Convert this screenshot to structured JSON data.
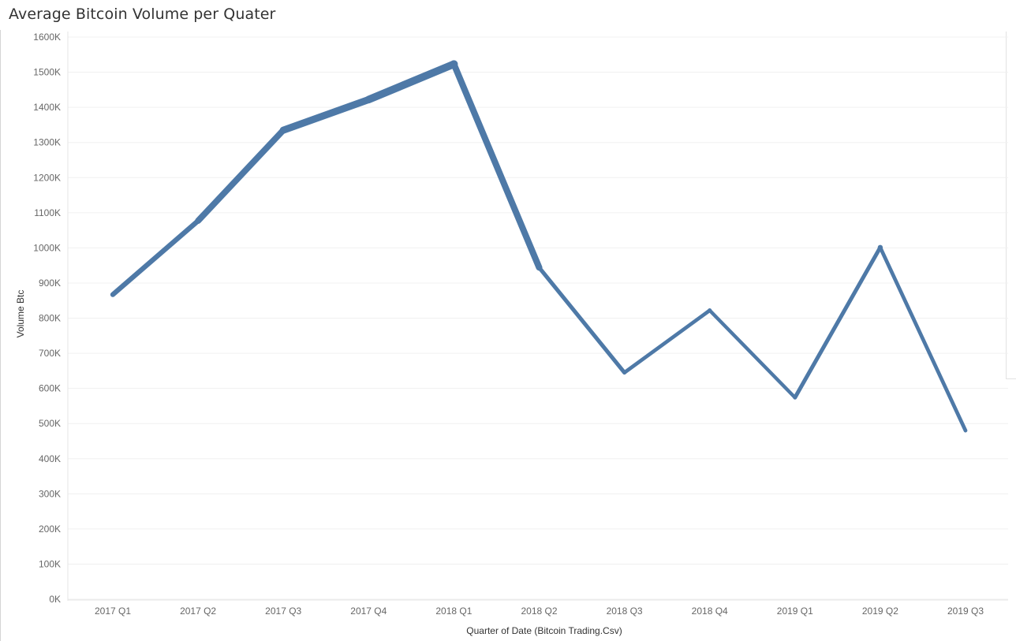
{
  "title": "Average Bitcoin Volume per Quater",
  "chart_data": {
    "type": "line",
    "title": "Average Bitcoin Volume per Quater",
    "xlabel": "Quarter of Date (Bitcoin Trading.Csv)",
    "ylabel": "Volume Btc",
    "categories": [
      "2017 Q1",
      "2017 Q2",
      "2017 Q3",
      "2017 Q4",
      "2018 Q1",
      "2018 Q2",
      "2018 Q3",
      "2018 Q4",
      "2019 Q1",
      "2019 Q2",
      "2019 Q3"
    ],
    "values": [
      867000,
      1077000,
      1335000,
      1422000,
      1523000,
      944000,
      645000,
      822000,
      574000,
      1001000,
      480000
    ],
    "ylim": [
      0,
      1600000
    ],
    "yticks": [
      0,
      100000,
      200000,
      300000,
      400000,
      500000,
      600000,
      700000,
      800000,
      900000,
      1000000,
      1100000,
      1200000,
      1300000,
      1400000,
      1500000,
      1600000
    ],
    "ytick_labels": [
      "0K",
      "100K",
      "200K",
      "300K",
      "400K",
      "500K",
      "600K",
      "700K",
      "800K",
      "900K",
      "1000K",
      "1100K",
      "1200K",
      "1300K",
      "1400K",
      "1500K",
      "1600K"
    ],
    "line_color": "#4e79a7",
    "grid": true,
    "legend": "none"
  }
}
